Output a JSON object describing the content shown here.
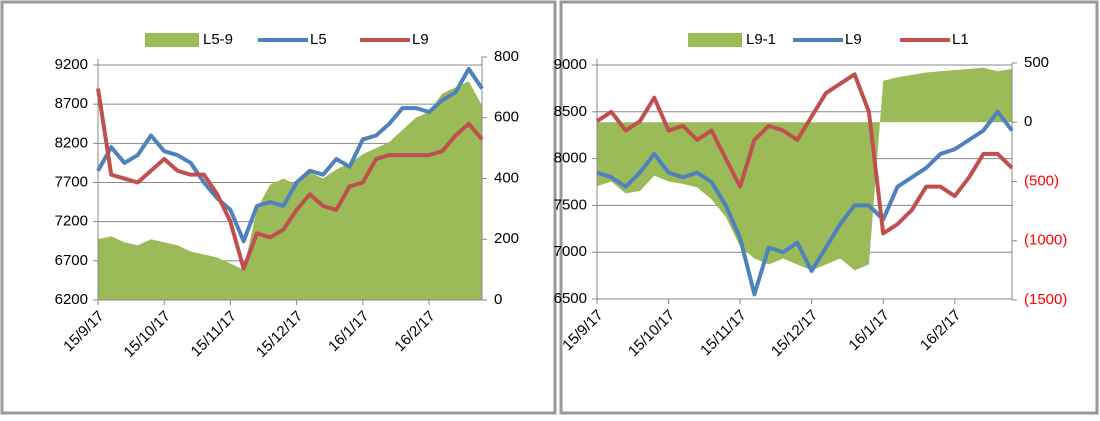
{
  "chart_data": [
    {
      "type": "line",
      "categories": [
        "15/9/17",
        null,
        null,
        null,
        null,
        "15/10/17",
        null,
        null,
        null,
        null,
        "15/11/17",
        null,
        null,
        null,
        null,
        "15/12/17",
        null,
        null,
        null,
        null,
        "16/1/17",
        null,
        null,
        null,
        null,
        "16/2/17",
        null,
        null,
        null,
        null
      ],
      "series": [
        {
          "name": "L5-9",
          "type": "area",
          "axis": "y2",
          "color": "#9bbb59",
          "values": [
            200,
            210,
            190,
            180,
            200,
            190,
            180,
            160,
            150,
            140,
            120,
            100,
            300,
            380,
            400,
            380,
            420,
            400,
            430,
            450,
            480,
            500,
            520,
            560,
            600,
            620,
            680,
            700,
            720,
            640
          ]
        },
        {
          "name": "L5",
          "type": "line",
          "color": "#4f81bd",
          "values": [
            7850,
            8150,
            7950,
            8050,
            8300,
            8100,
            8050,
            7950,
            7700,
            7500,
            7350,
            6950,
            7400,
            7450,
            7400,
            7700,
            7850,
            7800,
            8000,
            7900,
            8250,
            8300,
            8450,
            8650,
            8650,
            8600,
            8750,
            8850,
            9150,
            8900
          ]
        },
        {
          "name": "L9",
          "type": "line",
          "color": "#c0504d",
          "values": [
            8900,
            7800,
            7750,
            7700,
            7850,
            8000,
            7850,
            7800,
            7800,
            7550,
            7200,
            6600,
            7050,
            7000,
            7100,
            7350,
            7550,
            7400,
            7350,
            7650,
            7700,
            8000,
            8050,
            8050,
            8050,
            8050,
            8100,
            8300,
            8450,
            8250
          ]
        }
      ],
      "ylim": [
        6200,
        9200
      ],
      "yticks": [
        6200,
        6700,
        7200,
        7700,
        8200,
        8700,
        9200
      ],
      "y2lim": [
        0,
        800
      ],
      "y2ticks": [
        0,
        200,
        400,
        600,
        800
      ],
      "grid": true,
      "legend": "top"
    },
    {
      "type": "line",
      "categories": [
        "15/9/17",
        null,
        null,
        null,
        null,
        "15/10/17",
        null,
        null,
        null,
        null,
        "15/11/17",
        null,
        null,
        null,
        null,
        "15/12/17",
        null,
        null,
        null,
        null,
        "16/1/17",
        null,
        null,
        null,
        null,
        "16/2/17",
        null,
        null,
        null,
        null
      ],
      "series": [
        {
          "name": "L9-1",
          "type": "area",
          "axis": "y2",
          "color": "#9bbb59",
          "values": [
            -540,
            -500,
            -600,
            -580,
            -450,
            -500,
            -520,
            -550,
            -650,
            -800,
            -1050,
            -1150,
            -1200,
            -1150,
            -1200,
            -1250,
            -1200,
            -1150,
            -1250,
            -1200,
            350,
            380,
            400,
            420,
            430,
            440,
            450,
            460,
            430,
            450
          ]
        },
        {
          "name": "L9",
          "type": "line",
          "color": "#4f81bd",
          "values": [
            7850,
            7800,
            7700,
            7850,
            8050,
            7850,
            7800,
            7850,
            7750,
            7500,
            7150,
            6550,
            7050,
            7000,
            7100,
            6800,
            7050,
            7300,
            7500,
            7500,
            7350,
            7700,
            7800,
            7900,
            8050,
            8100,
            8200,
            8300,
            8500,
            8300
          ]
        },
        {
          "name": "L1",
          "type": "line",
          "color": "#c0504d",
          "values": [
            8400,
            8500,
            8300,
            8400,
            8650,
            8300,
            8350,
            8200,
            8300,
            8000,
            7700,
            8200,
            8350,
            8300,
            8200,
            8450,
            8700,
            8800,
            8900,
            8500,
            7200,
            7300,
            7450,
            7700,
            7700,
            7600,
            7800,
            8050,
            8050,
            7900
          ]
        }
      ],
      "ylim": [
        6500,
        9000
      ],
      "yticks": [
        6500,
        7000,
        7500,
        8000,
        8500,
        9000
      ],
      "y2lim": [
        -1500,
        500
      ],
      "y2ticks": [
        {
          "value": -1500,
          "label": "(1500)"
        },
        {
          "value": -1000,
          "label": "(1000)"
        },
        {
          "value": -500,
          "label": "(500)"
        },
        0,
        500
      ],
      "y2_negative_color": "#ff0000",
      "grid": true,
      "legend": "top"
    }
  ]
}
